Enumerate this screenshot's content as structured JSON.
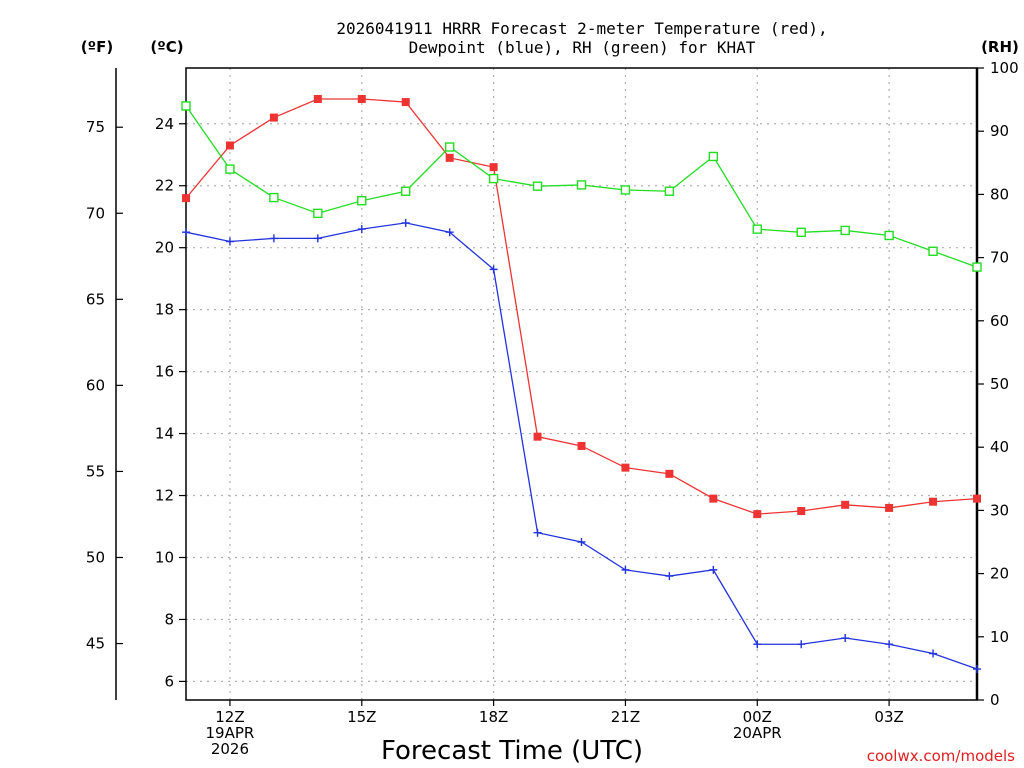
{
  "chart_data": {
    "type": "line",
    "title_lines": [
      "2026041911 HRRR Forecast 2-meter Temperature (red),",
      "Dewpoint (blue), RH (green) for KHAT"
    ],
    "xlabel": "Forecast Time (UTC)",
    "credit": "coolwx.com/models",
    "hours": [
      11,
      12,
      13,
      14,
      15,
      16,
      17,
      18,
      19,
      20,
      21,
      22,
      23,
      24,
      25,
      26,
      27,
      28,
      29
    ],
    "xlim": [
      11,
      29
    ],
    "x_ticks": [
      {
        "hour": 12,
        "lines": [
          "12Z",
          "19APR",
          "2026"
        ]
      },
      {
        "hour": 15,
        "lines": [
          "15Z"
        ]
      },
      {
        "hour": 18,
        "lines": [
          "18Z"
        ]
      },
      {
        "hour": 21,
        "lines": [
          "21Z"
        ]
      },
      {
        "hour": 24,
        "lines": [
          "00Z",
          "20APR"
        ]
      },
      {
        "hour": 27,
        "lines": [
          "03Z"
        ]
      }
    ],
    "axes": {
      "celsius": {
        "label": "(ºC)",
        "ylim": [
          5.4,
          25.8
        ],
        "ticks": [
          6,
          8,
          10,
          12,
          14,
          16,
          18,
          20,
          22,
          24
        ]
      },
      "fahrenheit": {
        "label": "(ºF)",
        "ticks": [
          45,
          50,
          55,
          60,
          65,
          70,
          75
        ]
      },
      "rh": {
        "label": "(RH)",
        "ylim": [
          0,
          100
        ],
        "ticks": [
          0,
          10,
          20,
          30,
          40,
          50,
          60,
          70,
          80,
          90,
          100
        ]
      }
    },
    "series": [
      {
        "name": "2-meter Temperature",
        "axis": "celsius",
        "color": "#ee3333",
        "marker": "filled-square",
        "values": [
          21.6,
          23.3,
          24.2,
          24.8,
          24.8,
          24.7,
          22.9,
          22.6,
          13.9,
          13.6,
          12.9,
          12.7,
          11.9,
          11.4,
          11.5,
          11.7,
          11.6,
          11.8,
          11.9
        ]
      },
      {
        "name": "Dewpoint",
        "axis": "celsius",
        "color": "#2233dd",
        "marker": "plus",
        "values": [
          20.5,
          20.2,
          20.3,
          20.3,
          20.6,
          20.8,
          20.5,
          19.3,
          10.8,
          10.5,
          9.6,
          9.4,
          9.6,
          7.2,
          7.2,
          7.4,
          7.2,
          6.9,
          6.4
        ]
      },
      {
        "name": "RH",
        "axis": "rh",
        "color": "#22dd22",
        "marker": "open-square",
        "values": [
          94,
          84,
          79.5,
          77,
          79,
          80.5,
          87.5,
          82.5,
          81.3,
          81.5,
          80.7,
          80.5,
          86,
          74.5,
          74,
          74.3,
          73.5,
          71,
          68.5
        ]
      }
    ]
  }
}
